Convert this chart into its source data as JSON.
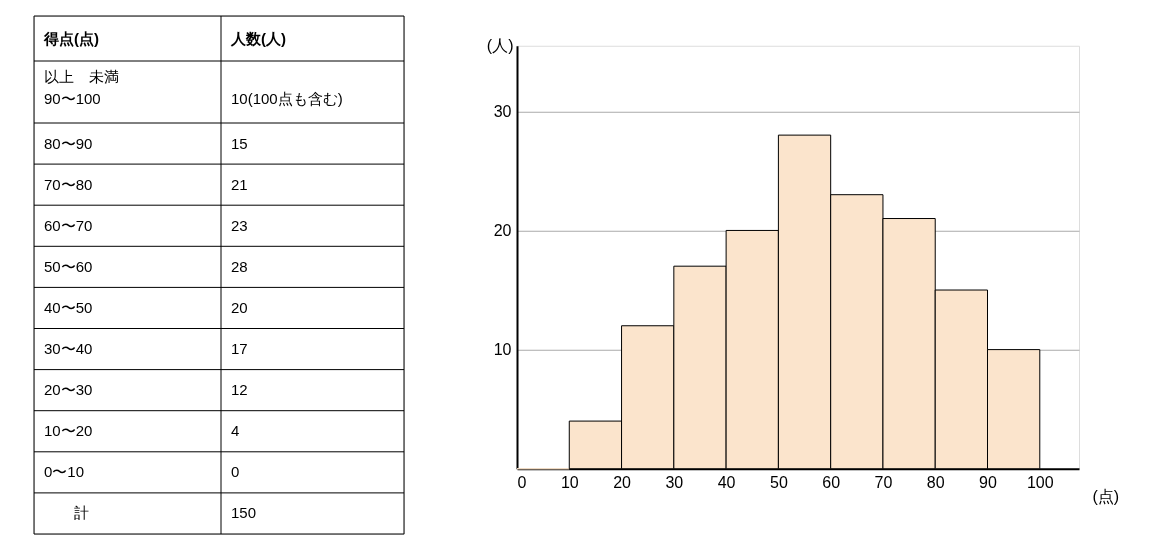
{
  "chart_data": {
    "type": "histogram",
    "bins": [
      0,
      10,
      20,
      30,
      40,
      50,
      60,
      70,
      80,
      90,
      100
    ],
    "values": [
      0,
      4,
      12,
      17,
      20,
      28,
      23,
      21,
      15,
      10
    ],
    "color": "#fbe4cc",
    "xlabel": "(点)",
    "ylabel": "(人)",
    "xlim": [
      0,
      107.5
    ],
    "xticks": [
      0,
      10,
      20,
      30,
      40,
      50,
      60,
      70,
      80,
      90,
      100
    ],
    "ylim": [
      0,
      35.5
    ],
    "yticks": [
      10,
      20,
      30
    ],
    "grid": "y",
    "annotations": [
      "得点(点)",
      "人数(人)",
      "以上　未満",
      "90〜100",
      "10(100点も含む)",
      "80〜90",
      "15",
      "70〜80",
      "21",
      "60〜70",
      "23",
      "50〜60",
      "28",
      "40〜50",
      "20",
      "30〜40",
      "17",
      "20〜30",
      "12",
      "10〜20",
      "4",
      "0〜10",
      "0",
      "計",
      "150"
    ]
  }
}
